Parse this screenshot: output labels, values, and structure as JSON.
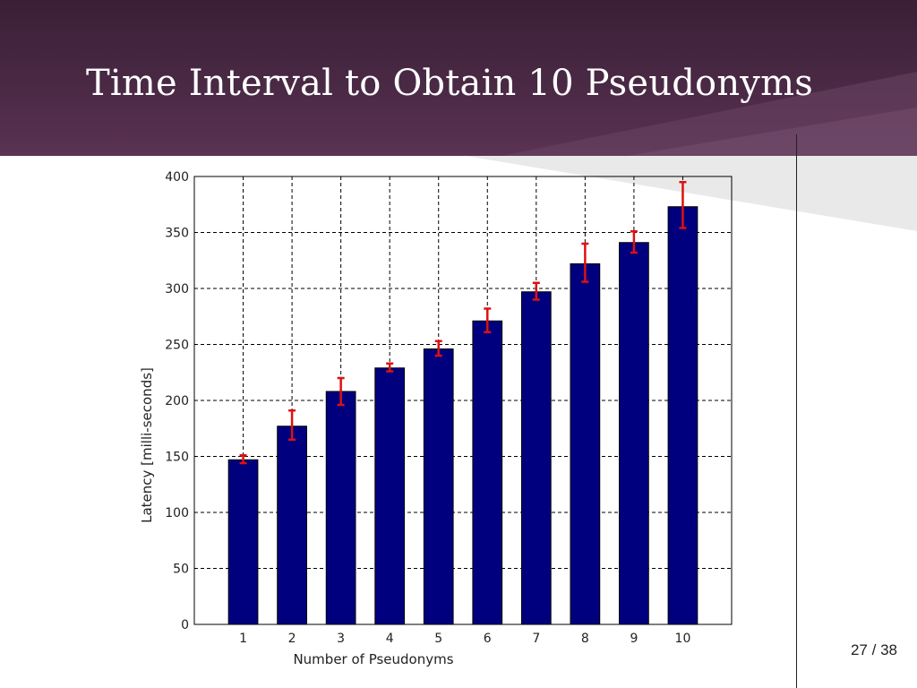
{
  "slide": {
    "title": "Time Interval to Obtain 10 Pseudonyms",
    "page_number": "27",
    "page_separator": "/",
    "page_total": "38"
  },
  "colors": {
    "header_dark": "#3a1f36",
    "header_light": "#5a3352",
    "bar_fill": "#00007f",
    "error_bar": "#dd1111",
    "grid": "#000000"
  },
  "chart_data": {
    "type": "bar",
    "title": "",
    "xlabel": "Number of Pseudonyms",
    "ylabel": "Latency [milli-seconds]",
    "categories": [
      "1",
      "2",
      "3",
      "4",
      "5",
      "6",
      "7",
      "8",
      "9",
      "10"
    ],
    "values": [
      147,
      177,
      208,
      229,
      246,
      271,
      297,
      322,
      341,
      373
    ],
    "error_low": [
      144,
      165,
      196,
      226,
      240,
      261,
      290,
      306,
      332,
      354
    ],
    "error_high": [
      151,
      191,
      220,
      233,
      253,
      282,
      305,
      340,
      351,
      395
    ],
    "ylim": [
      0,
      400
    ],
    "yticks": [
      "0",
      "50",
      "100",
      "150",
      "200",
      "250",
      "300",
      "350",
      "400"
    ],
    "xlim": [
      0,
      11
    ],
    "grid": true,
    "grid_style": "dashed"
  }
}
